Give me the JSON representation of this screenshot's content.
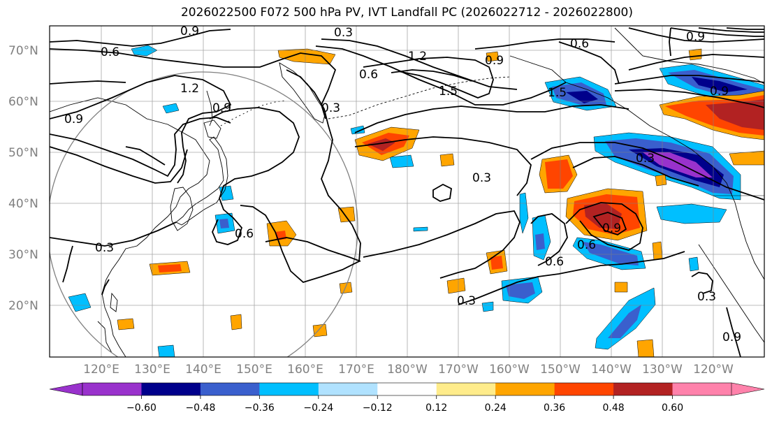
{
  "title": "2026022500 F072 500 hPa PV, IVT Landfall PC (2026022712 - 2026022800)",
  "lat_labels": [
    "70°N",
    "60°N",
    "50°N",
    "40°N",
    "30°N",
    "20°N"
  ],
  "lon_labels": [
    "120°E",
    "130°E",
    "140°E",
    "150°E",
    "160°E",
    "170°E",
    "180°W",
    "170°W",
    "160°W",
    "150°W",
    "140°W",
    "130°W",
    "120°W"
  ],
  "colorbar": {
    "colors": [
      "#9932cc",
      "#00008b",
      "#3a5fcd",
      "#00bfff",
      "#b0e2ff",
      "#ffffff",
      "#ffec8b",
      "#ffa500",
      "#ff4500",
      "#b22222",
      "#ff82ab"
    ],
    "tick_labels": [
      "−0.60",
      "−0.48",
      "−0.36",
      "−0.24",
      "−0.12",
      "0.12",
      "0.24",
      "0.36",
      "0.48",
      "0.60"
    ]
  },
  "contour_labels": [
    "0.9",
    "0.3",
    "0.6",
    "1.2",
    "0.9",
    "0.6",
    "1.5",
    "0.6",
    "0.9",
    "1.5",
    "0.3",
    "0.9",
    "0.3",
    "0.3",
    "0.3",
    "0.9",
    "0.6",
    "0.6",
    "0.3",
    "0.3",
    "0.9",
    "0.6",
    "1.2",
    "0.9",
    "0.9"
  ]
}
